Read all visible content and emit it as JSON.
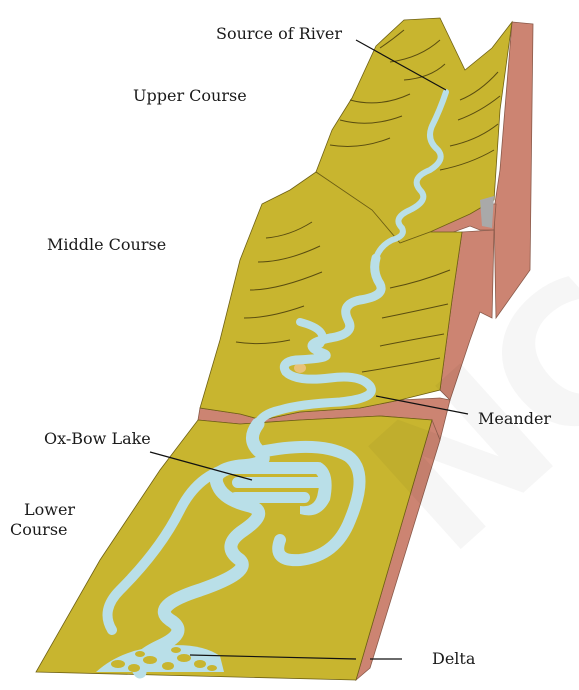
{
  "labels": {
    "source_of_river": "Source of River",
    "upper_course": "Upper Course",
    "middle_course": "Middle Course",
    "meander": "Meander",
    "ox_bow_lake": "Ox-Bow Lake",
    "lower_course_line1": "Lower",
    "lower_course_line2": "Course",
    "delta": "Delta"
  },
  "watermark": "NCE",
  "colors": {
    "land": "#c8b52f",
    "cliff": "#cc8472",
    "cliff_dark": "#b56f60",
    "water": "#b9dfe8",
    "water_edge": "#9ccfdc",
    "contour": "#5a4d10",
    "leader": "#111111"
  }
}
